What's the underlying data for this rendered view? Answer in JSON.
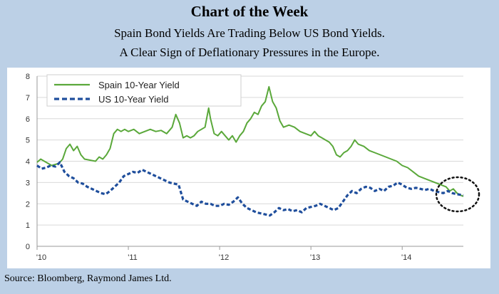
{
  "header": {
    "title": "Chart of the Week",
    "subtitle_line1": "Spain Bond Yields Are Trading Below US Bond Yields.",
    "subtitle_line2": "A Clear Sign of Deflationary Pressures in the Europe."
  },
  "footer": {
    "source": "Source: Bloomberg, Raymond James Ltd."
  },
  "chart_data": {
    "type": "line",
    "title": "Spain Bond Yields Are Trading Below US Bond Yields.",
    "xlabel": "",
    "ylabel": "",
    "xlim": [
      2010,
      2014.67
    ],
    "ylim": [
      0,
      8
    ],
    "yticks": [
      0,
      1,
      2,
      3,
      4,
      5,
      6,
      7,
      8
    ],
    "xticks": [
      {
        "value": 2010,
        "label": "'10"
      },
      {
        "value": 2011,
        "label": "'11"
      },
      {
        "value": 2012,
        "label": "'12"
      },
      {
        "value": 2013,
        "label": "'13"
      },
      {
        "value": 2014,
        "label": "'14"
      }
    ],
    "grid": "horizontal",
    "legend": "top-left",
    "annotation": "dotted circle around latest values",
    "series": [
      {
        "name": "Spain 10-Year Yield",
        "style": "solid",
        "color": "#5aa83a",
        "points": [
          [
            2010.0,
            3.95
          ],
          [
            2010.04,
            4.1
          ],
          [
            2010.08,
            4.0
          ],
          [
            2010.12,
            3.9
          ],
          [
            2010.16,
            3.8
          ],
          [
            2010.2,
            3.85
          ],
          [
            2010.24,
            3.9
          ],
          [
            2010.28,
            4.1
          ],
          [
            2010.32,
            4.6
          ],
          [
            2010.36,
            4.8
          ],
          [
            2010.4,
            4.5
          ],
          [
            2010.44,
            4.7
          ],
          [
            2010.48,
            4.3
          ],
          [
            2010.52,
            4.1
          ],
          [
            2010.58,
            4.05
          ],
          [
            2010.64,
            4.0
          ],
          [
            2010.68,
            4.2
          ],
          [
            2010.72,
            4.1
          ],
          [
            2010.76,
            4.3
          ],
          [
            2010.8,
            4.6
          ],
          [
            2010.84,
            5.3
          ],
          [
            2010.88,
            5.5
          ],
          [
            2010.92,
            5.4
          ],
          [
            2010.96,
            5.5
          ],
          [
            2011.0,
            5.4
          ],
          [
            2011.06,
            5.5
          ],
          [
            2011.12,
            5.3
          ],
          [
            2011.18,
            5.4
          ],
          [
            2011.24,
            5.5
          ],
          [
            2011.3,
            5.4
          ],
          [
            2011.36,
            5.45
          ],
          [
            2011.42,
            5.3
          ],
          [
            2011.48,
            5.6
          ],
          [
            2011.52,
            6.2
          ],
          [
            2011.56,
            5.8
          ],
          [
            2011.6,
            5.1
          ],
          [
            2011.64,
            5.2
          ],
          [
            2011.68,
            5.1
          ],
          [
            2011.72,
            5.2
          ],
          [
            2011.76,
            5.4
          ],
          [
            2011.8,
            5.5
          ],
          [
            2011.84,
            5.6
          ],
          [
            2011.88,
            6.5
          ],
          [
            2011.9,
            6.0
          ],
          [
            2011.94,
            5.3
          ],
          [
            2011.98,
            5.2
          ],
          [
            2012.02,
            5.4
          ],
          [
            2012.06,
            5.2
          ],
          [
            2012.1,
            5.0
          ],
          [
            2012.14,
            5.2
          ],
          [
            2012.18,
            4.9
          ],
          [
            2012.22,
            5.2
          ],
          [
            2012.26,
            5.4
          ],
          [
            2012.3,
            5.8
          ],
          [
            2012.34,
            6.0
          ],
          [
            2012.38,
            6.3
          ],
          [
            2012.42,
            6.2
          ],
          [
            2012.46,
            6.6
          ],
          [
            2012.5,
            6.8
          ],
          [
            2012.54,
            7.5
          ],
          [
            2012.58,
            6.8
          ],
          [
            2012.62,
            6.5
          ],
          [
            2012.66,
            5.9
          ],
          [
            2012.7,
            5.6
          ],
          [
            2012.76,
            5.7
          ],
          [
            2012.82,
            5.6
          ],
          [
            2012.88,
            5.4
          ],
          [
            2012.94,
            5.3
          ],
          [
            2013.0,
            5.2
          ],
          [
            2013.04,
            5.4
          ],
          [
            2013.08,
            5.2
          ],
          [
            2013.12,
            5.1
          ],
          [
            2013.16,
            5.0
          ],
          [
            2013.2,
            4.9
          ],
          [
            2013.24,
            4.7
          ],
          [
            2013.28,
            4.3
          ],
          [
            2013.32,
            4.2
          ],
          [
            2013.36,
            4.4
          ],
          [
            2013.4,
            4.5
          ],
          [
            2013.44,
            4.7
          ],
          [
            2013.48,
            5.0
          ],
          [
            2013.52,
            4.8
          ],
          [
            2013.58,
            4.7
          ],
          [
            2013.64,
            4.5
          ],
          [
            2013.7,
            4.4
          ],
          [
            2013.76,
            4.3
          ],
          [
            2013.82,
            4.2
          ],
          [
            2013.88,
            4.1
          ],
          [
            2013.94,
            4.0
          ],
          [
            2014.0,
            3.8
          ],
          [
            2014.06,
            3.7
          ],
          [
            2014.12,
            3.5
          ],
          [
            2014.18,
            3.3
          ],
          [
            2014.24,
            3.2
          ],
          [
            2014.3,
            3.1
          ],
          [
            2014.36,
            3.0
          ],
          [
            2014.42,
            2.9
          ],
          [
            2014.48,
            2.8
          ],
          [
            2014.52,
            2.6
          ],
          [
            2014.56,
            2.7
          ],
          [
            2014.6,
            2.5
          ],
          [
            2014.64,
            2.4
          ],
          [
            2014.67,
            2.35
          ]
        ]
      },
      {
        "name": "US 10-Year Yield",
        "style": "dashed",
        "color": "#1f4e9c",
        "points": [
          [
            2010.0,
            3.8
          ],
          [
            2010.05,
            3.65
          ],
          [
            2010.1,
            3.7
          ],
          [
            2010.15,
            3.8
          ],
          [
            2010.2,
            3.75
          ],
          [
            2010.25,
            3.95
          ],
          [
            2010.3,
            3.5
          ],
          [
            2010.35,
            3.3
          ],
          [
            2010.4,
            3.2
          ],
          [
            2010.45,
            3.0
          ],
          [
            2010.5,
            2.95
          ],
          [
            2010.55,
            2.8
          ],
          [
            2010.6,
            2.7
          ],
          [
            2010.65,
            2.6
          ],
          [
            2010.7,
            2.5
          ],
          [
            2010.75,
            2.45
          ],
          [
            2010.8,
            2.6
          ],
          [
            2010.85,
            2.8
          ],
          [
            2010.9,
            3.0
          ],
          [
            2010.95,
            3.3
          ],
          [
            2011.0,
            3.4
          ],
          [
            2011.05,
            3.5
          ],
          [
            2011.1,
            3.45
          ],
          [
            2011.15,
            3.6
          ],
          [
            2011.2,
            3.5
          ],
          [
            2011.25,
            3.4
          ],
          [
            2011.3,
            3.3
          ],
          [
            2011.35,
            3.2
          ],
          [
            2011.4,
            3.1
          ],
          [
            2011.45,
            3.0
          ],
          [
            2011.5,
            2.95
          ],
          [
            2011.55,
            2.9
          ],
          [
            2011.6,
            2.2
          ],
          [
            2011.65,
            2.1
          ],
          [
            2011.7,
            2.0
          ],
          [
            2011.75,
            1.9
          ],
          [
            2011.8,
            2.1
          ],
          [
            2011.85,
            2.0
          ],
          [
            2011.9,
            2.0
          ],
          [
            2011.95,
            1.9
          ],
          [
            2012.0,
            1.9
          ],
          [
            2012.05,
            2.0
          ],
          [
            2012.1,
            1.95
          ],
          [
            2012.15,
            2.1
          ],
          [
            2012.2,
            2.3
          ],
          [
            2012.25,
            2.0
          ],
          [
            2012.3,
            1.8
          ],
          [
            2012.35,
            1.7
          ],
          [
            2012.4,
            1.6
          ],
          [
            2012.45,
            1.55
          ],
          [
            2012.5,
            1.5
          ],
          [
            2012.55,
            1.45
          ],
          [
            2012.6,
            1.6
          ],
          [
            2012.65,
            1.8
          ],
          [
            2012.7,
            1.7
          ],
          [
            2012.75,
            1.75
          ],
          [
            2012.8,
            1.65
          ],
          [
            2012.85,
            1.7
          ],
          [
            2012.9,
            1.6
          ],
          [
            2012.95,
            1.8
          ],
          [
            2013.0,
            1.85
          ],
          [
            2013.05,
            1.9
          ],
          [
            2013.1,
            2.0
          ],
          [
            2013.15,
            1.9
          ],
          [
            2013.2,
            1.8
          ],
          [
            2013.25,
            1.7
          ],
          [
            2013.3,
            1.8
          ],
          [
            2013.35,
            2.1
          ],
          [
            2013.4,
            2.4
          ],
          [
            2013.45,
            2.6
          ],
          [
            2013.5,
            2.5
          ],
          [
            2013.55,
            2.7
          ],
          [
            2013.6,
            2.8
          ],
          [
            2013.65,
            2.75
          ],
          [
            2013.7,
            2.6
          ],
          [
            2013.75,
            2.7
          ],
          [
            2013.8,
            2.6
          ],
          [
            2013.85,
            2.8
          ],
          [
            2013.9,
            2.85
          ],
          [
            2013.95,
            3.0
          ],
          [
            2014.0,
            2.9
          ],
          [
            2014.05,
            2.75
          ],
          [
            2014.1,
            2.7
          ],
          [
            2014.15,
            2.75
          ],
          [
            2014.2,
            2.7
          ],
          [
            2014.25,
            2.65
          ],
          [
            2014.3,
            2.7
          ],
          [
            2014.35,
            2.6
          ],
          [
            2014.4,
            2.55
          ],
          [
            2014.45,
            2.5
          ],
          [
            2014.5,
            2.6
          ],
          [
            2014.55,
            2.5
          ],
          [
            2014.6,
            2.45
          ],
          [
            2014.67,
            2.4
          ]
        ]
      }
    ]
  }
}
